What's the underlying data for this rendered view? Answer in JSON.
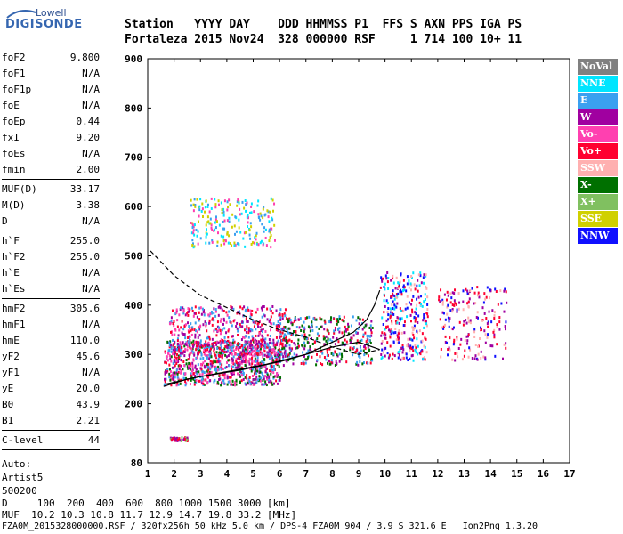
{
  "logo": {
    "top": "Lowell",
    "main": "DIGISONDE"
  },
  "header": {
    "labels": "Station   YYYY DAY    DDD HHMMSS P1  FFS S AXN PPS IGA PS",
    "values": "Fortaleza 2015 Nov24  328 000000 RSF     1 714 100 10+ 11"
  },
  "params": [
    {
      "k": "foF2",
      "v": "9.800"
    },
    {
      "k": "foF1",
      "v": "N/A"
    },
    {
      "k": "foF1p",
      "v": "N/A"
    },
    {
      "k": "foE",
      "v": "N/A"
    },
    {
      "k": "foEp",
      "v": "0.44"
    },
    {
      "k": "fxI",
      "v": "9.20"
    },
    {
      "k": "foEs",
      "v": "N/A"
    },
    {
      "k": "fmin",
      "v": "2.00"
    },
    {
      "sep": true
    },
    {
      "k": "MUF(D)",
      "v": "33.17"
    },
    {
      "k": "M(D)",
      "v": "3.38"
    },
    {
      "k": "D",
      "v": "N/A"
    },
    {
      "sep": true
    },
    {
      "k": "h`F",
      "v": "255.0"
    },
    {
      "k": "h`F2",
      "v": "255.0"
    },
    {
      "k": "h`E",
      "v": "N/A"
    },
    {
      "k": "h`Es",
      "v": "N/A"
    },
    {
      "sep": true
    },
    {
      "k": "hmF2",
      "v": "305.6"
    },
    {
      "k": "hmF1",
      "v": "N/A"
    },
    {
      "k": "hmE",
      "v": "110.0"
    },
    {
      "k": "yF2",
      "v": "45.6"
    },
    {
      "k": "yF1",
      "v": "N/A"
    },
    {
      "k": "yE",
      "v": "20.0"
    },
    {
      "k": "B0",
      "v": "43.9"
    },
    {
      "k": "B1",
      "v": "2.21"
    },
    {
      "sep": true
    },
    {
      "k": "C-level",
      "v": "44"
    },
    {
      "sep": true
    }
  ],
  "auto": [
    "Auto:",
    "Artist5",
    "500200"
  ],
  "legend": [
    {
      "label": "NoVal",
      "color": "#808080"
    },
    {
      "label": "NNE",
      "color": "#00e5ff"
    },
    {
      "label": "E",
      "color": "#3aa0f0"
    },
    {
      "label": "W",
      "color": "#a000a0"
    },
    {
      "label": "Vo-",
      "color": "#ff40b0"
    },
    {
      "label": "Vo+",
      "color": "#ff0030"
    },
    {
      "label": "SSW",
      "color": "#ffb0b0"
    },
    {
      "label": "X-",
      "color": "#007000"
    },
    {
      "label": "X+",
      "color": "#80c060"
    },
    {
      "label": "SSE",
      "color": "#d0d000"
    },
    {
      "label": "NNW",
      "color": "#1010ff"
    }
  ],
  "footer": {
    "line1": "D     100  200  400  600  800 1000 1500 3000 [km]",
    "line2": "MUF  10.2 10.3 10.8 11.7 12.9 14.7 19.8 33.2 [MHz]",
    "line3": "FZA0M_2015328000000.RSF / 320fx256h 50 kHz 5.0 km / DPS-4 FZA0M 904 / 3.9 S 321.6 E   Ion2Png 1.3.20"
  },
  "chart_data": {
    "type": "scatter",
    "xlim": [
      1,
      17
    ],
    "ylim": [
      80,
      900
    ],
    "x_ticks": [
      "1",
      "2",
      "3",
      "4",
      "5",
      "6",
      "7",
      "8",
      "9",
      "10",
      "11",
      "12",
      "13",
      "14",
      "15",
      "16",
      "17"
    ],
    "y_ticks": [
      "80",
      "200",
      "300",
      "400",
      "500",
      "600",
      "700",
      "800",
      "900"
    ],
    "grid": false,
    "legend_placement": "right",
    "traces": [
      {
        "name": "profile",
        "style": "solid",
        "points": [
          [
            1.6,
            235
          ],
          [
            2.5,
            250
          ],
          [
            4,
            265
          ],
          [
            5.5,
            280
          ],
          [
            7,
            300
          ],
          [
            8,
            325
          ],
          [
            8.8,
            345
          ],
          [
            9.3,
            370
          ],
          [
            9.6,
            400
          ],
          [
            9.8,
            430
          ]
        ]
      },
      {
        "name": "o-trace",
        "style": "solid",
        "points": [
          [
            1.7,
            240
          ],
          [
            3,
            255
          ],
          [
            4.5,
            268
          ],
          [
            6,
            285
          ],
          [
            7,
            300
          ],
          [
            8,
            315
          ],
          [
            9,
            325
          ],
          [
            9.8,
            310
          ]
        ]
      },
      {
        "name": "profile-upper",
        "style": "dashed",
        "points": [
          [
            1.1,
            510
          ],
          [
            2,
            460
          ],
          [
            3,
            420
          ],
          [
            4,
            395
          ],
          [
            5,
            370
          ],
          [
            6,
            350
          ],
          [
            7,
            335
          ],
          [
            8,
            315
          ],
          [
            9,
            300
          ],
          [
            9.8,
            310
          ]
        ]
      }
    ],
    "clusters": [
      {
        "x": [
          1.6,
          6.0
        ],
        "y": [
          240,
          330
        ],
        "colors": [
          "#3aa0f0",
          "#ff0030",
          "#a000a0",
          "#007000",
          "#ff40b0"
        ],
        "n": 900
      },
      {
        "x": [
          1.8,
          6.2
        ],
        "y": [
          300,
          400
        ],
        "colors": [
          "#a000a0",
          "#ff40b0",
          "#3aa0f0",
          "#ff0030"
        ],
        "n": 500
      },
      {
        "x": [
          2.6,
          5.8
        ],
        "y": [
          520,
          620
        ],
        "colors": [
          "#3aa0f0",
          "#00e5ff",
          "#d0d000",
          "#ff40b0"
        ],
        "n": 220
      },
      {
        "x": [
          6.0,
          9.5
        ],
        "y": [
          280,
          380
        ],
        "colors": [
          "#3aa0f0",
          "#ff0030",
          "#a000a0",
          "#007000"
        ],
        "n": 380
      },
      {
        "x": [
          9.8,
          11.6
        ],
        "y": [
          290,
          470
        ],
        "colors": [
          "#1010ff",
          "#ff0030",
          "#a000a0",
          "#00e5ff",
          "#ffb0b0"
        ],
        "n": 320
      },
      {
        "x": [
          12.0,
          14.6
        ],
        "y": [
          290,
          440
        ],
        "colors": [
          "#1010ff",
          "#a000a0",
          "#ff0030",
          "#ffb0b0"
        ],
        "n": 200
      },
      {
        "x": [
          1.8,
          2.5
        ],
        "y": [
          127,
          134
        ],
        "colors": [
          "#ff0030",
          "#80c060",
          "#a000a0"
        ],
        "n": 40
      }
    ]
  }
}
